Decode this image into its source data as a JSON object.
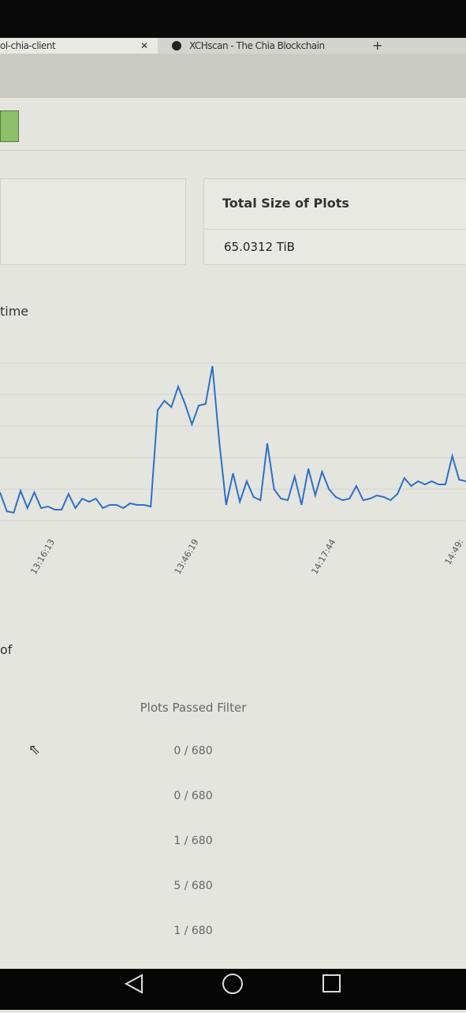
{
  "tabs": [
    "ol-chia-client",
    "XCHscan - The Chia Blockchain"
  ],
  "card": {
    "title": "Total Size of Plots",
    "value": "65.0312 TiB"
  },
  "chart_heading": "time",
  "chart_data": {
    "type": "line",
    "color": "#2f6fc8",
    "ylim": [
      0,
      100
    ],
    "categories": [
      null,
      null,
      null,
      null,
      null,
      null,
      null,
      null,
      "13:16:13",
      null,
      null,
      null,
      null,
      null,
      null,
      null,
      null,
      null,
      null,
      null,
      null,
      null,
      null,
      null,
      null,
      null,
      null,
      null,
      null,
      "13:46:19",
      null,
      null,
      null,
      null,
      null,
      null,
      null,
      null,
      null,
      null,
      null,
      null,
      null,
      null,
      null,
      null,
      null,
      null,
      null,
      "14:17:44",
      null,
      null,
      null,
      null,
      null,
      null,
      null,
      null,
      null,
      null,
      null,
      null,
      null,
      null,
      null,
      null,
      null,
      null,
      "14:49:"
    ],
    "values": [
      18,
      6,
      5,
      19,
      8,
      18,
      8,
      9,
      7,
      7,
      17,
      8,
      14,
      12,
      14,
      8,
      10,
      10,
      8,
      11,
      10,
      10,
      9,
      70,
      76,
      72,
      85,
      74,
      61,
      73,
      74,
      98,
      50,
      10,
      30,
      12,
      25,
      15,
      13,
      49,
      20,
      14,
      13,
      28,
      10,
      33,
      16,
      31,
      20,
      15,
      13,
      14,
      22,
      13,
      14,
      16,
      15,
      13,
      17,
      27,
      22,
      25,
      23,
      25,
      23,
      23,
      41,
      26,
      25
    ]
  },
  "section_heading": "of",
  "table": {
    "header": "Plots Passed Filter",
    "rows": [
      "0 / 680",
      "0 / 680",
      "1 / 680",
      "5 / 680",
      "1 / 680"
    ]
  }
}
